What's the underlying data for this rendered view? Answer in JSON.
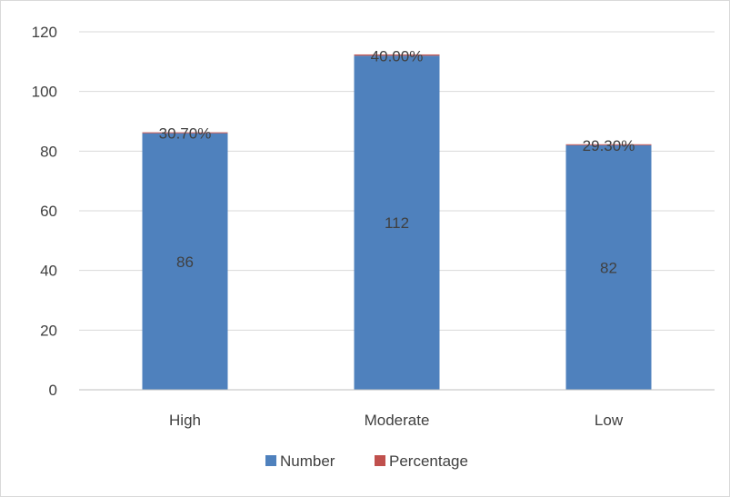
{
  "chart_data": {
    "type": "bar",
    "stacked": true,
    "categories": [
      "High",
      "Moderate",
      "Low"
    ],
    "series": [
      {
        "name": "Number",
        "values": [
          86,
          112,
          82
        ],
        "labels": [
          "86",
          "112",
          "82"
        ],
        "color": "#4f81bd"
      },
      {
        "name": "Percentage",
        "values": [
          0.307,
          0.4,
          0.293
        ],
        "labels": [
          "30.70%",
          "40.00%",
          "29.30%"
        ],
        "color": "#c0504d"
      }
    ],
    "ylim": [
      0,
      120
    ],
    "yticks": [
      0,
      20,
      40,
      60,
      80,
      100,
      120
    ],
    "grid": true,
    "legend": "bottom"
  }
}
